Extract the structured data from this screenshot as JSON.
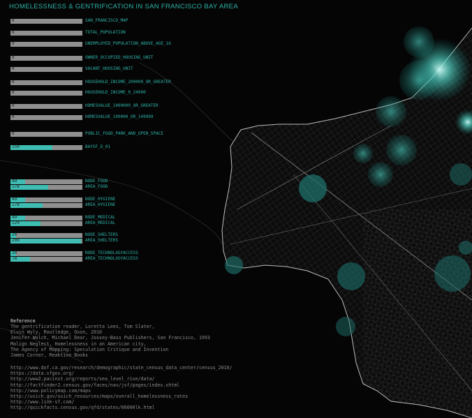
{
  "title": "HOMELESSNESS & GENTRIFICATION IN SAN FRANCISCO BAY AREA",
  "indicators": [
    {
      "value": "0",
      "label": "SAN_FRANCISCO_MAP",
      "fill": 0
    },
    {
      "value": "0",
      "label": "TOTAL_POPULATION",
      "fill": 0
    },
    {
      "value": "0",
      "label": "UNEMPLOYED_POPULATION_ABOVE_AGE_16",
      "fill": 0
    },
    {
      "value": "0",
      "label": "OWNER_OCCUPIED_HOUSING_UNIT",
      "fill": 0
    },
    {
      "value": "0",
      "label": "VACANT_HOUSING_UNIT",
      "fill": 0
    },
    {
      "value": "0",
      "label": "HOUSEHOLD_INCOME_200000_OR_GREATER",
      "fill": 0
    },
    {
      "value": "0",
      "label": "HOUSEHOLD_INCOME_0_24000",
      "fill": 0
    },
    {
      "value": "0",
      "label": "HOMESVALUE_1000000_OR_GREATER",
      "fill": 0
    },
    {
      "value": "0",
      "label": "HOMESVALUE_100000_OR_149999",
      "fill": 0
    },
    {
      "value": "0",
      "label": "PUBLIC_FOOD_PARK_AND_OPEN_SPACE",
      "fill": 0
    },
    {
      "value": "150",
      "label": "BAYSF_D_01",
      "fill": 0.58
    }
  ],
  "pairs": [
    {
      "node_value": "49",
      "node_label": "NODE_FOOD",
      "node_fill": 0.2,
      "area_value": "178",
      "area_label": "AREA_FOOD",
      "area_fill": 0.52
    },
    {
      "node_value": "49",
      "node_label": "NODE_HYGIENE",
      "node_fill": 0.2,
      "area_value": "178",
      "area_label": "AREA_HYGIENE",
      "area_fill": 0.45
    },
    {
      "node_value": "49",
      "node_label": "NODE_MEDICAL",
      "node_fill": 0.2,
      "area_value": "129",
      "area_label": "AREA_MEDICAL",
      "area_fill": 0.42
    },
    {
      "node_value": "20",
      "node_label": "NODE_SHELTERS",
      "node_fill": 0.08,
      "area_value": "200",
      "area_label": "AREA_SHELTERS",
      "area_fill": 0.98
    },
    {
      "node_value": "20",
      "node_label": "NODE_TECHNOLOGYACCESS",
      "node_fill": 0.08,
      "area_value": "78",
      "area_label": "AREA_TECHNOLOGYACCESS",
      "area_fill": 0.27
    }
  ],
  "reference": {
    "heading": "Reference",
    "lines": [
      "The gentrification reader, Loretta Lees, Tom Slater,",
      "Elvin Wyly, Routledge, Oxon, 2010",
      "Jenifer Wolch, Michael Dear, Jossey-Bass Publishers, San Francisco, 1993",
      "Malign Neglect, Homelessness in an American city,",
      "The Agency of Mapping: Speculation Critique and Invention",
      "James Corner, Reaktion Books"
    ],
    "links": [
      "http://www.dof.ca.gov/research/demographic/state_census_data_center/census_2010/",
      "https://data.sfgov.org/",
      "http://www2.pacinst.org/reports/sea_level_rise/data/",
      "http://factfinder2.census.gov/faces/nav/jsf/pages/index.xhtml",
      "http://www.policymap.com/maps",
      "http://usich.gov/usich_resources/maps/overall_homelessness_rates",
      "http://www.link-sf.com/",
      "http://quickfacts.census.gov/qfd/states/06000lk.html"
    ]
  },
  "colors": {
    "accent": "#2fb3a8",
    "bar": "#8f8f8f",
    "glow": "#5ff0e0"
  }
}
